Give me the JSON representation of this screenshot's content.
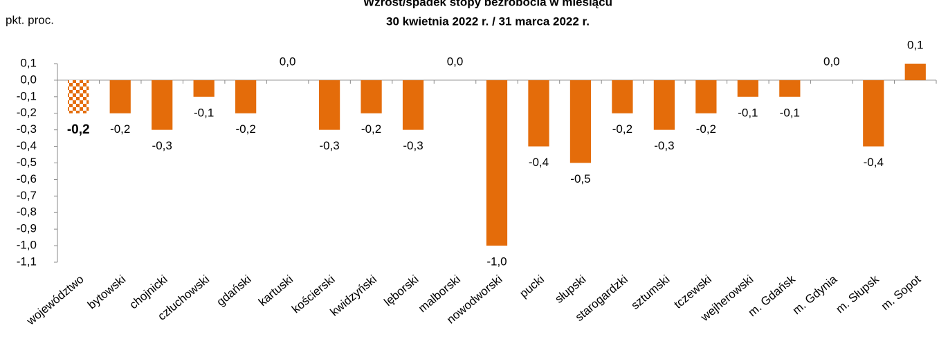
{
  "chart_data": {
    "type": "bar",
    "title": "Wzrost/spadek stopy bezrobocia w miesiącu",
    "subtitle": "30 kwietnia 2022 r. / 31 marca 2022 r.",
    "y_axis_label": "pkt. proc.",
    "categories": [
      "województwo",
      "bytowski",
      "chojnicki",
      "człuchowski",
      "gdański",
      "kartuski",
      "kościerski",
      "kwidzyński",
      "lęborski",
      "malborski",
      "nowodworski",
      "pucki",
      "słupski",
      "starogardzki",
      "sztumski",
      "tczewski",
      "wejherowski",
      "m. Gdańsk",
      "m. Gdynia",
      "m. Słupsk",
      "m. Sopot"
    ],
    "values": [
      -0.2,
      -0.2,
      -0.3,
      -0.1,
      -0.2,
      0.0,
      -0.3,
      -0.2,
      -0.3,
      0.0,
      -1.0,
      -0.4,
      -0.5,
      -0.2,
      -0.3,
      -0.2,
      -0.1,
      -0.1,
      0.0,
      -0.4,
      0.1
    ],
    "value_labels": [
      "-0,2",
      "-0,2",
      "-0,3",
      "-0,1",
      "-0,2",
      "0,0",
      "-0,3",
      "-0,2",
      "-0,3",
      "0,0",
      "-1,0",
      "-0,4",
      "-0,5",
      "-0,2",
      "-0,3",
      "-0,2",
      "-0,1",
      "-0,1",
      "0,0",
      "-0,4",
      "0,1"
    ],
    "color": "#e46c0a",
    "ylim": [
      -1.1,
      0.1
    ],
    "yticks": [
      {
        "value": 0.1,
        "label": "0,1"
      },
      {
        "value": 0.0,
        "label": "0,0"
      },
      {
        "value": -0.1,
        "label": "-0,1"
      },
      {
        "value": -0.2,
        "label": "-0,2"
      },
      {
        "value": -0.3,
        "label": "-0,3"
      },
      {
        "value": -0.4,
        "label": "-0,4"
      },
      {
        "value": -0.5,
        "label": "-0,5"
      },
      {
        "value": -0.6,
        "label": "-0,6"
      },
      {
        "value": -0.7,
        "label": "-0,7"
      },
      {
        "value": -0.8,
        "label": "-0,8"
      },
      {
        "value": -0.9,
        "label": "-0,9"
      },
      {
        "value": -1.0,
        "label": "-1,0"
      },
      {
        "value": -1.1,
        "label": "-1,1"
      }
    ],
    "grid": false
  }
}
